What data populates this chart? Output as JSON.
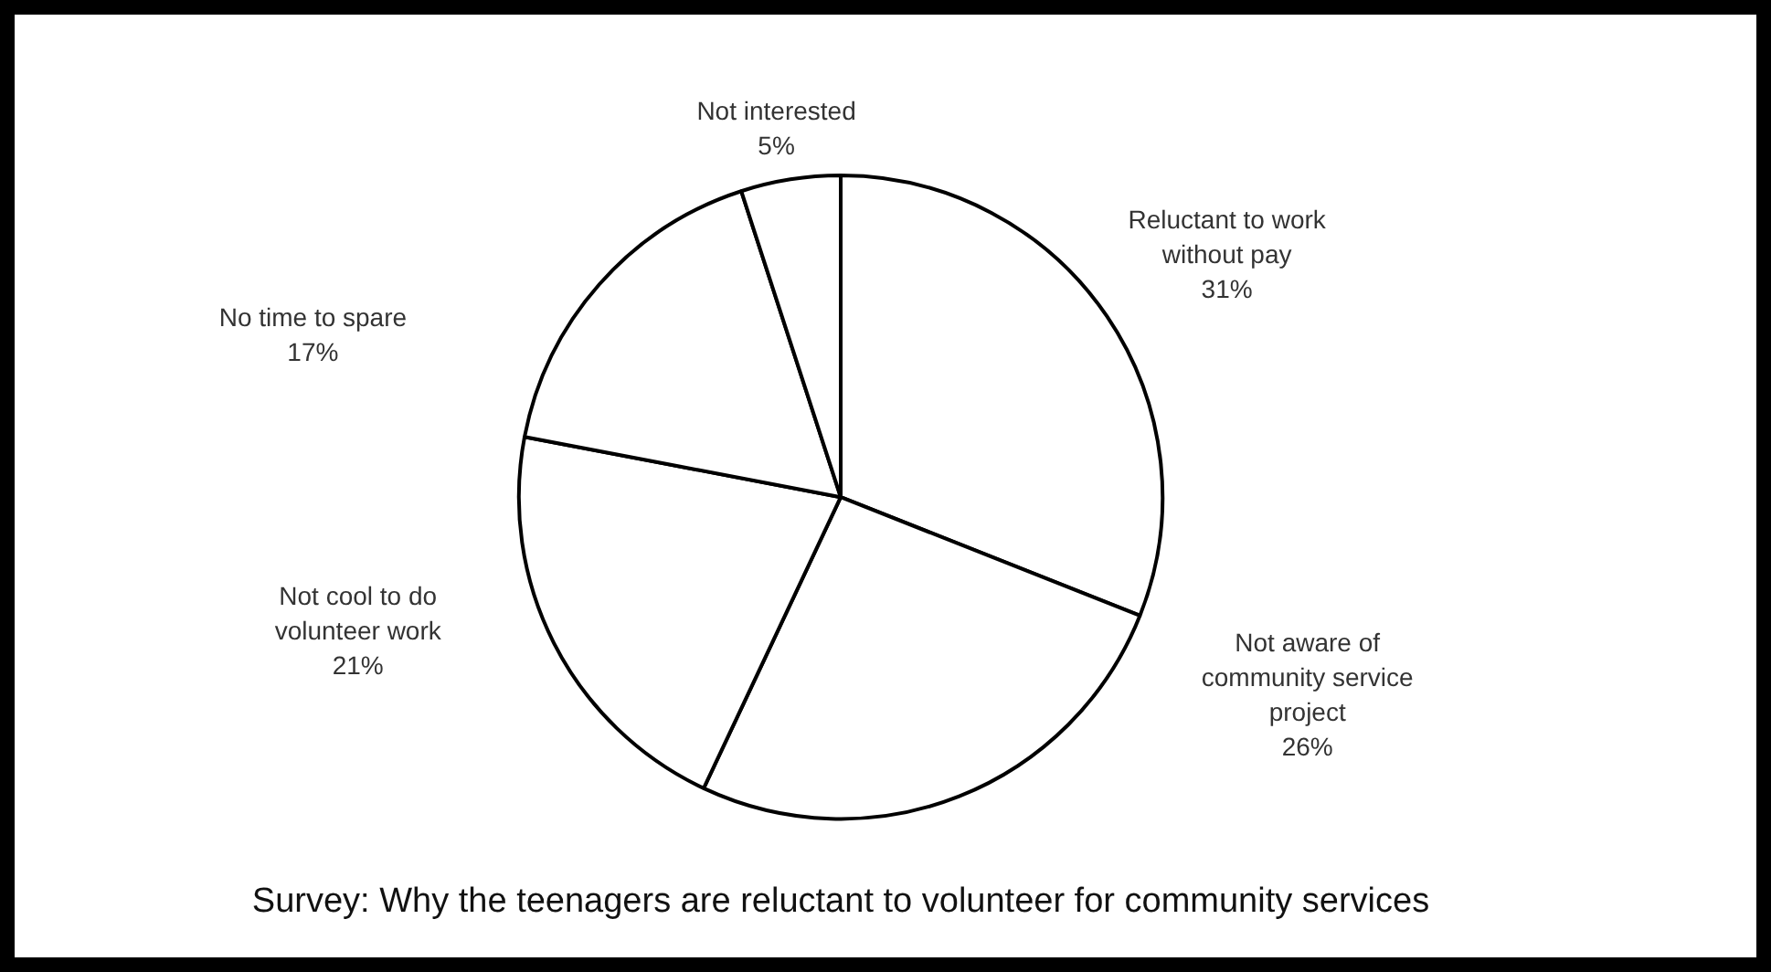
{
  "chart_data": {
    "type": "pie",
    "title": "Survey: Why the teenagers are reluctant to volunteer for community services",
    "categories": [
      "Reluctant to work without pay",
      "Not aware of community service project",
      "Not cool to do volunteer work",
      "No time to spare",
      "Not interested"
    ],
    "values": [
      31,
      26,
      21,
      17,
      5
    ],
    "colors": [
      "#ffffff",
      "#ffffff",
      "#ffffff",
      "#ffffff",
      "#ffffff"
    ],
    "value_labels": [
      "31%",
      "26%",
      "21%",
      "17%",
      "5%"
    ],
    "legend": false
  }
}
